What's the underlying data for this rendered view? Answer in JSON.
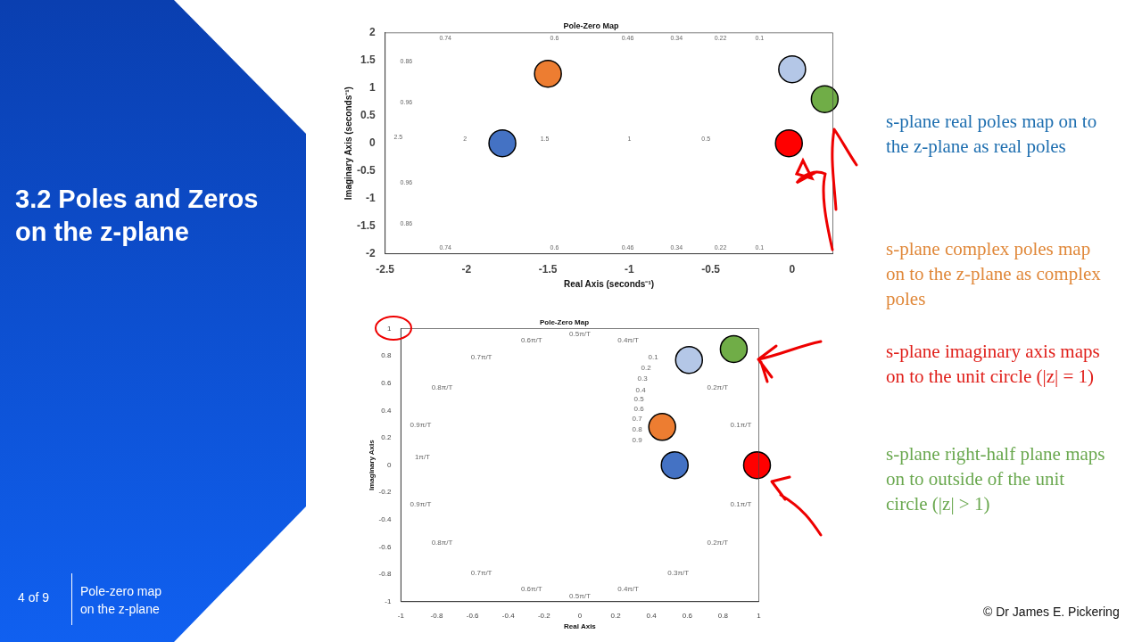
{
  "chart_data": [
    {
      "type": "scatter",
      "title": "Pole-Zero Map",
      "xlabel": "Real Axis (seconds⁻¹)",
      "ylabel": "Imaginary Axis (seconds⁻¹)",
      "xlim": [
        -2.5,
        0.25
      ],
      "xticks": [
        -2.5,
        -2,
        -1.5,
        -1,
        -0.5,
        0
      ],
      "ylim": [
        -2,
        2
      ],
      "yticks": [
        -2,
        -1.5,
        -1,
        -0.5,
        0,
        0.5,
        1,
        1.5,
        2
      ],
      "marker": "circle",
      "series": [
        {
          "color": "#4472c4",
          "x": [
            -1.78
          ],
          "values": [
            0
          ]
        },
        {
          "color": "#ed7d31",
          "x": [
            -1.5
          ],
          "values": [
            1.26
          ]
        },
        {
          "color": "#b4c7e7",
          "x": [
            0
          ],
          "values": [
            1.34
          ]
        },
        {
          "color": "#70ad47",
          "x": [
            0.2
          ],
          "values": [
            0.8
          ]
        },
        {
          "color": "#ff0000",
          "x": [
            -0.02
          ],
          "values": [
            0
          ]
        }
      ],
      "annotations": [
        "0.74",
        "0.6",
        "0.46",
        "0.34",
        "0.22",
        "0.1",
        "0.74",
        "0.6",
        "0.46",
        "0.34",
        "0.22",
        "0.1",
        "0.86",
        "0.96",
        "0.96",
        "0.86",
        "2.5",
        "2",
        "1.5",
        "1",
        "0.5"
      ]
    },
    {
      "type": "scatter",
      "title": "Pole-Zero Map",
      "xlabel": "Real Axis",
      "ylabel": "Imaginary Axis",
      "xlim": [
        -1,
        1
      ],
      "xticks": [
        -1,
        -0.8,
        -0.6,
        -0.4,
        -0.2,
        0,
        0.2,
        0.4,
        0.6,
        0.8,
        1
      ],
      "ylim": [
        -1,
        1
      ],
      "yticks": [
        -1,
        -0.8,
        -0.6,
        -0.4,
        -0.2,
        0,
        0.2,
        0.4,
        0.6,
        0.8,
        1
      ],
      "marker": "circle",
      "series": [
        {
          "color": "#4472c4",
          "x": [
            0.53
          ],
          "values": [
            0
          ]
        },
        {
          "color": "#ed7d31",
          "x": [
            0.46
          ],
          "values": [
            0.28
          ]
        },
        {
          "color": "#b4c7e7",
          "x": [
            0.61
          ],
          "values": [
            0.77
          ]
        },
        {
          "color": "#70ad47",
          "x": [
            0.86
          ],
          "values": [
            0.85
          ]
        },
        {
          "color": "#ff0000",
          "x": [
            0.99
          ],
          "values": [
            0
          ]
        }
      ],
      "annotations": [
        "0.5π/T",
        "0.6π/T",
        "0.4π/T",
        "0.7π/T",
        "0.8π/T",
        "0.9π/T",
        "1π/T",
        "0.2π/T",
        "0.1π/T",
        "0.9π/T",
        "0.8π/T",
        "0.7π/T",
        "0.6π/T",
        "0.5π/T",
        "0.4π/T",
        "0.3π/T",
        "0.2π/T",
        "0.1π/T",
        "0.1",
        "0.2",
        "0.3",
        "0.4",
        "0.5",
        "0.6",
        "0.7",
        "0.8",
        "0.9"
      ]
    },
    {
      "type": "other",
      "title": "3.2 Poles and Zeros on the z-plane",
      "annotations": [
        "s-plane real poles map on to the z-plane as real poles",
        "s-plane complex poles map on to the z-plane as complex poles",
        "s-plane imaginary axis maps on to the unit circle (|z| = 1)",
        "s-plane right-half  plane maps on to outside of  the unit circle (|z| > 1)",
        "4 of 9",
        "Pole-zero map on the z-plane",
        "© Dr James E. Pickering"
      ]
    }
  ]
}
